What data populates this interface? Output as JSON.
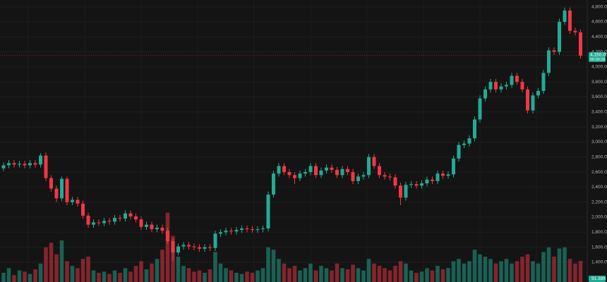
{
  "chart_data": {
    "type": "candlestick",
    "up_color": "#22ab94",
    "down_color": "#f23645",
    "grid": true,
    "ylim": [
      1137,
      4890
    ],
    "yticks": [
      {
        "value": 1400,
        "label": "1,400.00"
      },
      {
        "value": 1600,
        "label": "1,600.00"
      },
      {
        "value": 1800,
        "label": "1,800.00"
      },
      {
        "value": 2000,
        "label": "2,000.00"
      },
      {
        "value": 2200,
        "label": "2,200.00"
      },
      {
        "value": 2400,
        "label": "2,400.00"
      },
      {
        "value": 2600,
        "label": "2,600.00"
      },
      {
        "value": 2800,
        "label": "2,800.00"
      },
      {
        "value": 3000,
        "label": "3,000.00"
      },
      {
        "value": 3200,
        "label": "3,200.00"
      },
      {
        "value": 3400,
        "label": "3,400.00"
      },
      {
        "value": 3600,
        "label": "3,600.00"
      },
      {
        "value": 3800,
        "label": "3,800.00"
      },
      {
        "value": 4000,
        "label": "4,000.00"
      },
      {
        "value": 4200,
        "label": "4,200.00"
      },
      {
        "value": 4400,
        "label": "4,400.00"
      },
      {
        "value": 4600,
        "label": "4,600.00"
      },
      {
        "value": 4800,
        "label": "4,800.00"
      }
    ],
    "open": [
      2650,
      2690,
      2720,
      2700,
      2710,
      2690,
      2720,
      2700,
      2820,
      2520,
      2380,
      2250,
      2510,
      2200,
      2230,
      2180,
      2020,
      1900,
      1930,
      1920,
      1950,
      1940,
      1990,
      1980,
      2050,
      2010,
      1970,
      1870,
      1900,
      1840,
      1860,
      1820,
      1680,
      1530,
      1610,
      1630,
      1610,
      1600,
      1580,
      1600,
      1590,
      1780,
      1800,
      1820,
      1810,
      1830,
      1850,
      1840,
      1830,
      1840,
      1850,
      2300,
      2580,
      2680,
      2600,
      2560,
      2520,
      2580,
      2600,
      2680,
      2560,
      2620,
      2660,
      2630,
      2560,
      2640,
      2600,
      2480,
      2540,
      2560,
      2800,
      2680,
      2560,
      2540,
      2530,
      2420,
      2260,
      2430,
      2440,
      2420,
      2450,
      2500,
      2480,
      2580,
      2550,
      2570,
      2780,
      2960,
      2980,
      3050,
      3300,
      3580,
      3700,
      3800,
      3700,
      3740,
      3760,
      3880,
      3800,
      3700,
      3420,
      3620,
      3680,
      3920,
      4220,
      4200,
      4600,
      4750,
      4480,
      4460
    ],
    "high": [
      2730,
      2760,
      2760,
      2750,
      2750,
      2760,
      2760,
      2850,
      2860,
      2560,
      2420,
      2540,
      2540,
      2270,
      2270,
      2220,
      2060,
      1970,
      1970,
      1990,
      1990,
      2030,
      2030,
      2090,
      2090,
      2050,
      2010,
      1940,
      1940,
      1900,
      1900,
      1860,
      1720,
      1650,
      1670,
      1670,
      1650,
      1640,
      1640,
      1640,
      1820,
      1840,
      1860,
      1860,
      1870,
      1890,
      1890,
      1880,
      1880,
      1890,
      2340,
      2620,
      2720,
      2720,
      2640,
      2600,
      2620,
      2640,
      2720,
      2720,
      2660,
      2700,
      2700,
      2670,
      2680,
      2680,
      2640,
      2580,
      2600,
      2840,
      2840,
      2720,
      2600,
      2580,
      2570,
      2460,
      2470,
      2480,
      2480,
      2490,
      2540,
      2540,
      2620,
      2620,
      2610,
      2820,
      3000,
      3020,
      3090,
      3340,
      3620,
      3740,
      3840,
      3840,
      3780,
      3800,
      3920,
      3920,
      3840,
      3740,
      3660,
      3720,
      3960,
      4260,
      4260,
      4640,
      4790,
      4790,
      4520,
      4500
    ],
    "low": [
      2610,
      2650,
      2660,
      2660,
      2650,
      2650,
      2660,
      2660,
      2480,
      2340,
      2200,
      2210,
      2160,
      2160,
      2140,
      1980,
      1860,
      1860,
      1880,
      1880,
      1900,
      1900,
      1940,
      1940,
      1970,
      1930,
      1830,
      1830,
      1800,
      1800,
      1780,
      1640,
      1420,
      1490,
      1570,
      1570,
      1560,
      1540,
      1540,
      1550,
      1550,
      1740,
      1760,
      1770,
      1770,
      1790,
      1800,
      1790,
      1790,
      1800,
      1810,
      2260,
      2540,
      2560,
      2520,
      2440,
      2480,
      2540,
      2560,
      2520,
      2520,
      2580,
      2590,
      2520,
      2520,
      2560,
      2440,
      2440,
      2500,
      2520,
      2640,
      2520,
      2500,
      2490,
      2380,
      2160,
      2220,
      2390,
      2380,
      2380,
      2410,
      2440,
      2440,
      2510,
      2510,
      2530,
      2740,
      2920,
      2940,
      3010,
      3260,
      3540,
      3660,
      3660,
      3660,
      3700,
      3720,
      3760,
      3660,
      3380,
      3380,
      3580,
      3640,
      3880,
      4160,
      4160,
      4560,
      4440,
      4420,
      4110
    ],
    "close": [
      2690,
      2720,
      2700,
      2710,
      2690,
      2720,
      2700,
      2820,
      2520,
      2380,
      2250,
      2510,
      2200,
      2230,
      2180,
      2020,
      1900,
      1930,
      1920,
      1950,
      1940,
      1990,
      1980,
      2050,
      2010,
      1970,
      1870,
      1900,
      1840,
      1860,
      1820,
      1680,
      1530,
      1610,
      1630,
      1610,
      1600,
      1580,
      1600,
      1590,
      1780,
      1800,
      1820,
      1810,
      1830,
      1850,
      1840,
      1830,
      1840,
      1850,
      2300,
      2580,
      2680,
      2600,
      2560,
      2520,
      2580,
      2600,
      2680,
      2560,
      2620,
      2660,
      2630,
      2560,
      2640,
      2600,
      2480,
      2540,
      2560,
      2800,
      2680,
      2560,
      2540,
      2530,
      2420,
      2260,
      2430,
      2440,
      2420,
      2450,
      2500,
      2480,
      2580,
      2550,
      2570,
      2780,
      2960,
      2980,
      3050,
      3300,
      3580,
      3700,
      3800,
      3700,
      3740,
      3760,
      3880,
      3800,
      3700,
      3420,
      3620,
      3680,
      3920,
      4220,
      4200,
      4600,
      4750,
      4480,
      4460,
      4150
    ],
    "volume": {
      "ylim": [
        0,
        400
      ],
      "values": [
        40,
        60,
        30,
        50,
        45,
        35,
        55,
        80,
        150,
        170,
        120,
        180,
        90,
        70,
        60,
        100,
        110,
        50,
        40,
        45,
        35,
        50,
        40,
        60,
        45,
        70,
        90,
        55,
        80,
        100,
        140,
        300,
        200,
        110,
        70,
        60,
        45,
        50,
        40,
        55,
        130,
        80,
        60,
        50,
        40,
        35,
        45,
        40,
        50,
        60,
        150,
        140,
        100,
        80,
        60,
        70,
        50,
        60,
        80,
        50,
        70,
        60,
        50,
        80,
        60,
        55,
        75,
        60,
        50,
        100,
        80,
        70,
        60,
        50,
        70,
        90,
        80,
        50,
        40,
        45,
        60,
        50,
        70,
        55,
        60,
        90,
        100,
        80,
        90,
        140,
        120,
        110,
        100,
        80,
        90,
        100,
        80,
        90,
        110,
        120,
        90,
        80,
        130,
        150,
        110,
        145,
        150,
        100,
        80,
        91.38
      ]
    },
    "last_price": {
      "value": 4150,
      "label": "4,150.00"
    },
    "countdown": "00:00:28",
    "last_volume": {
      "value": 91.38,
      "label": "91.38K"
    }
  }
}
